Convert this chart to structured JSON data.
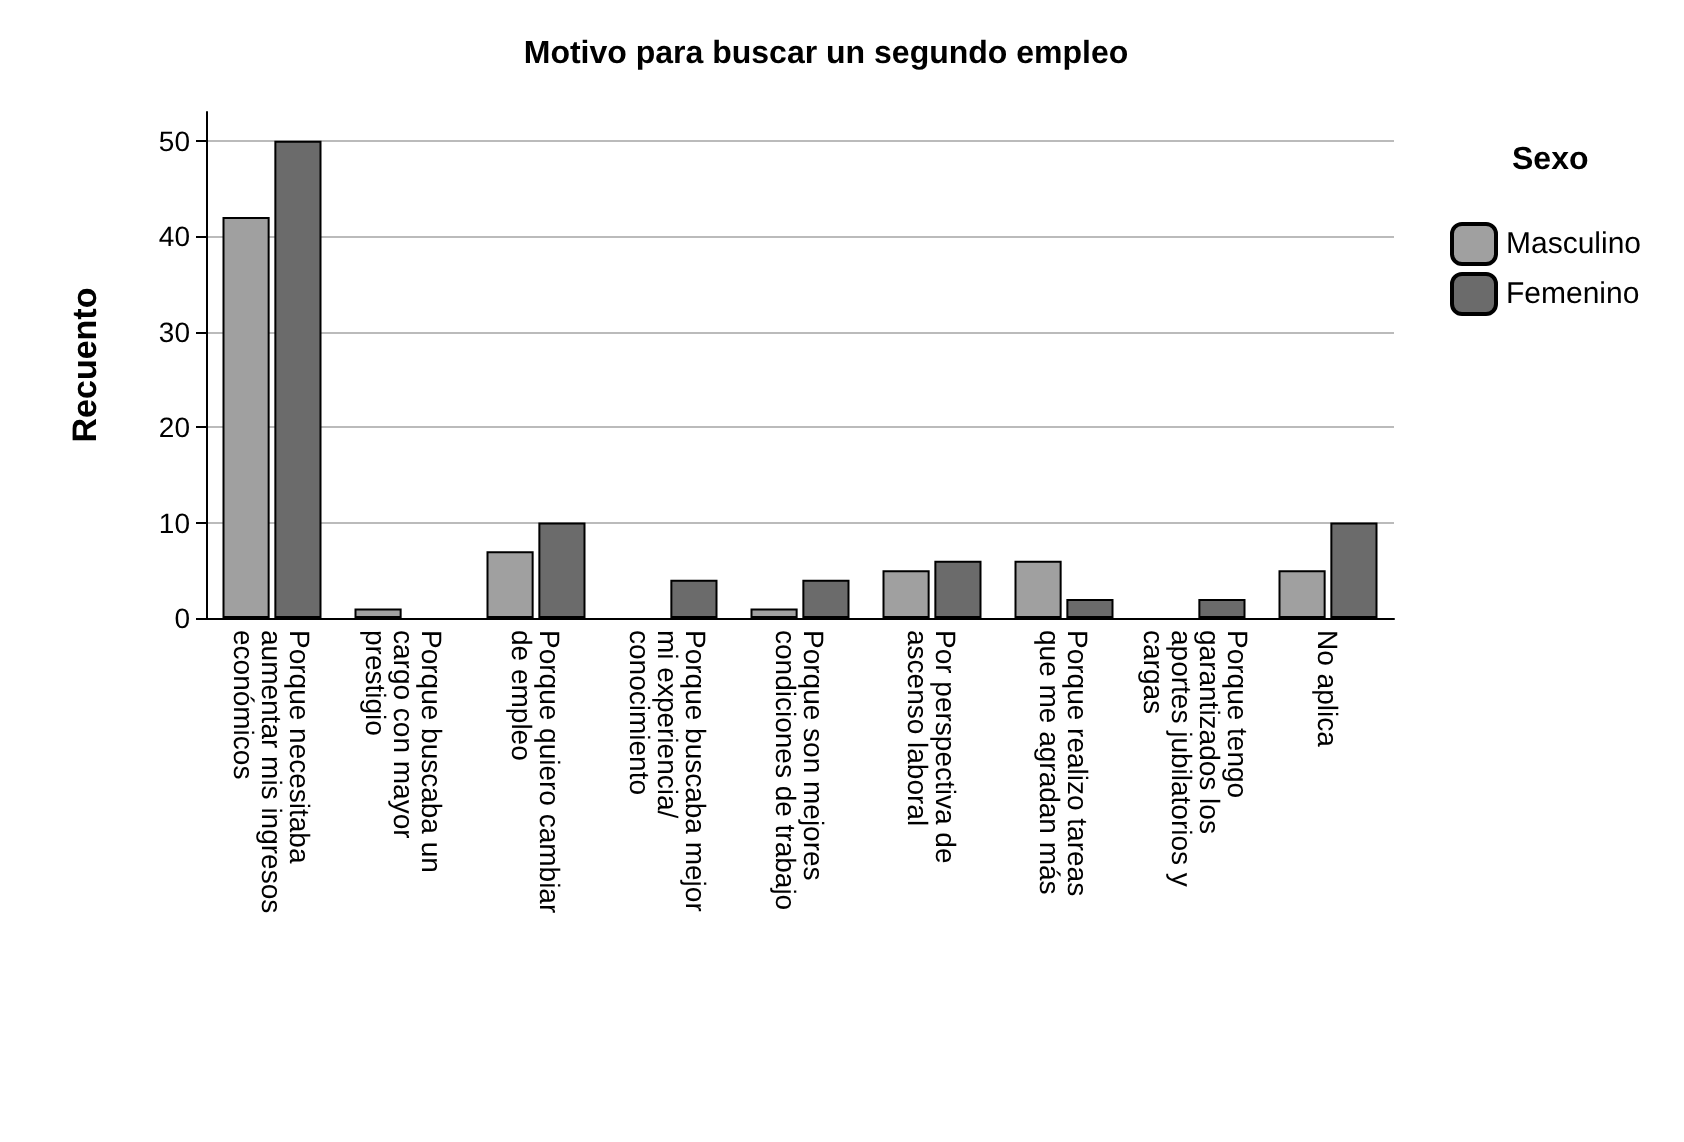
{
  "chart_data": {
    "type": "bar",
    "title": "Motivo para buscar un segundo empleo",
    "ylabel": "Recuento",
    "legend_title": "Sexo",
    "categories": [
      "Porque necesitaba aumentar mis ingresos económicos",
      "Porque buscaba un cargo con mayor prestigio",
      "Porque quiero cambiar de empleo",
      "Porque buscaba mejor mi experiencia/conocimiento",
      "Porque son mejores condiciones de trabajo",
      "Por perspectiva de ascenso laboral",
      "Porque realizo tareas que me agradan más",
      "Porque tengo garantizados los aportes jubilatorios y cargas",
      "No aplica"
    ],
    "series": [
      {
        "name": "Masculino",
        "color": "#a0a0a0",
        "values": [
          42,
          1,
          7,
          null,
          1,
          5,
          6,
          null,
          5
        ]
      },
      {
        "name": "Femenino",
        "color": "#6b6b6b",
        "values": [
          50,
          null,
          10,
          4,
          4,
          6,
          2,
          2,
          10
        ]
      }
    ],
    "ylim": [
      0,
      53
    ],
    "yticks": [
      0,
      10,
      20,
      30,
      40,
      50
    ],
    "grid": "y",
    "legend": "right"
  }
}
